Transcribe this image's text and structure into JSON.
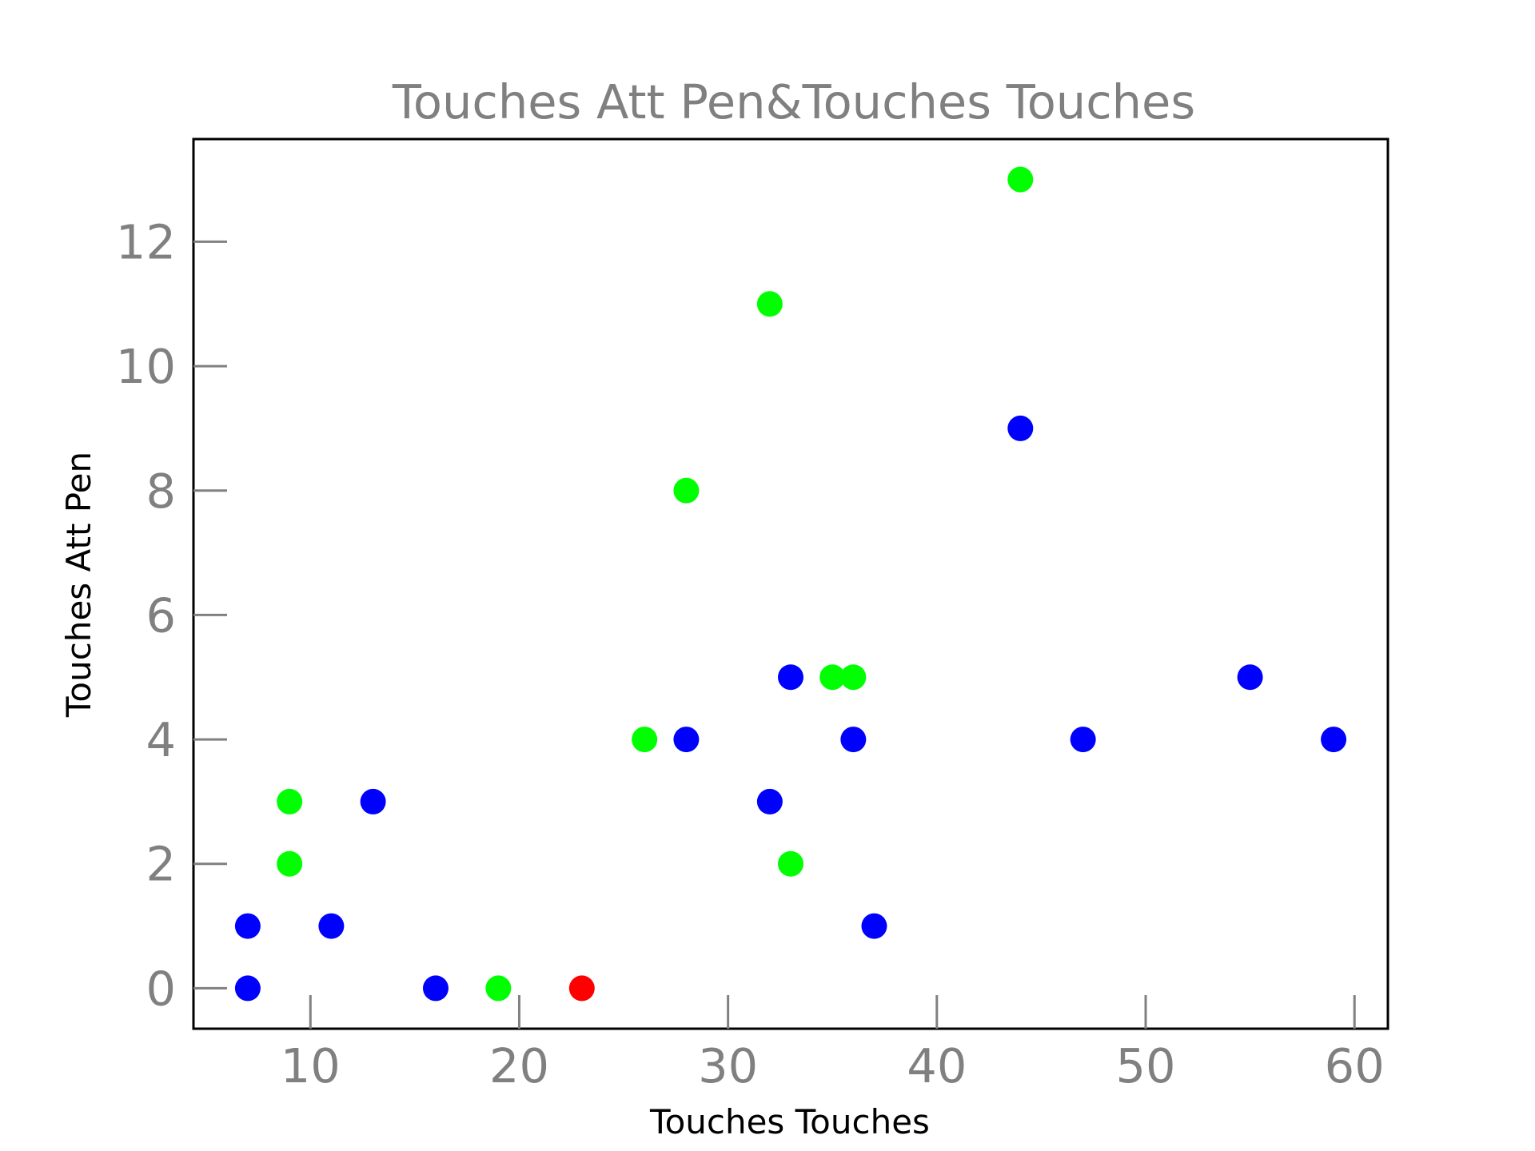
{
  "chart_data": {
    "type": "scatter",
    "title": "Touches Att Pen&Touches Touches",
    "xlabel": "Touches Touches",
    "ylabel": "Touches Att Pen",
    "xlim": [
      4.4,
      61.6
    ],
    "ylim": [
      -0.65,
      13.65
    ],
    "xticks": [
      10,
      20,
      30,
      40,
      50,
      60
    ],
    "yticks": [
      0,
      2,
      4,
      6,
      8,
      10,
      12
    ],
    "grid": false,
    "colors": {
      "blue": "#0000ff",
      "green": "#00ff00",
      "red": "#ff0000"
    },
    "points": [
      {
        "x": 7,
        "y": 0,
        "color": "blue"
      },
      {
        "x": 7,
        "y": 1,
        "color": "blue"
      },
      {
        "x": 9,
        "y": 2,
        "color": "green"
      },
      {
        "x": 9,
        "y": 3,
        "color": "green"
      },
      {
        "x": 11,
        "y": 1,
        "color": "blue"
      },
      {
        "x": 13,
        "y": 3,
        "color": "blue"
      },
      {
        "x": 16,
        "y": 0,
        "color": "blue"
      },
      {
        "x": 19,
        "y": 0,
        "color": "green"
      },
      {
        "x": 23,
        "y": 0,
        "color": "red"
      },
      {
        "x": 26,
        "y": 4,
        "color": "green"
      },
      {
        "x": 28,
        "y": 8,
        "color": "green"
      },
      {
        "x": 28,
        "y": 4,
        "color": "blue"
      },
      {
        "x": 32,
        "y": 11,
        "color": "green"
      },
      {
        "x": 32,
        "y": 3,
        "color": "blue"
      },
      {
        "x": 33,
        "y": 5,
        "color": "blue"
      },
      {
        "x": 33,
        "y": 2,
        "color": "green"
      },
      {
        "x": 35,
        "y": 5,
        "color": "green"
      },
      {
        "x": 36,
        "y": 5,
        "color": "green"
      },
      {
        "x": 36,
        "y": 4,
        "color": "blue"
      },
      {
        "x": 37,
        "y": 1,
        "color": "blue"
      },
      {
        "x": 44,
        "y": 13,
        "color": "green"
      },
      {
        "x": 44,
        "y": 9,
        "color": "blue"
      },
      {
        "x": 47,
        "y": 4,
        "color": "blue"
      },
      {
        "x": 55,
        "y": 5,
        "color": "blue"
      },
      {
        "x": 59,
        "y": 4,
        "color": "blue"
      }
    ]
  }
}
